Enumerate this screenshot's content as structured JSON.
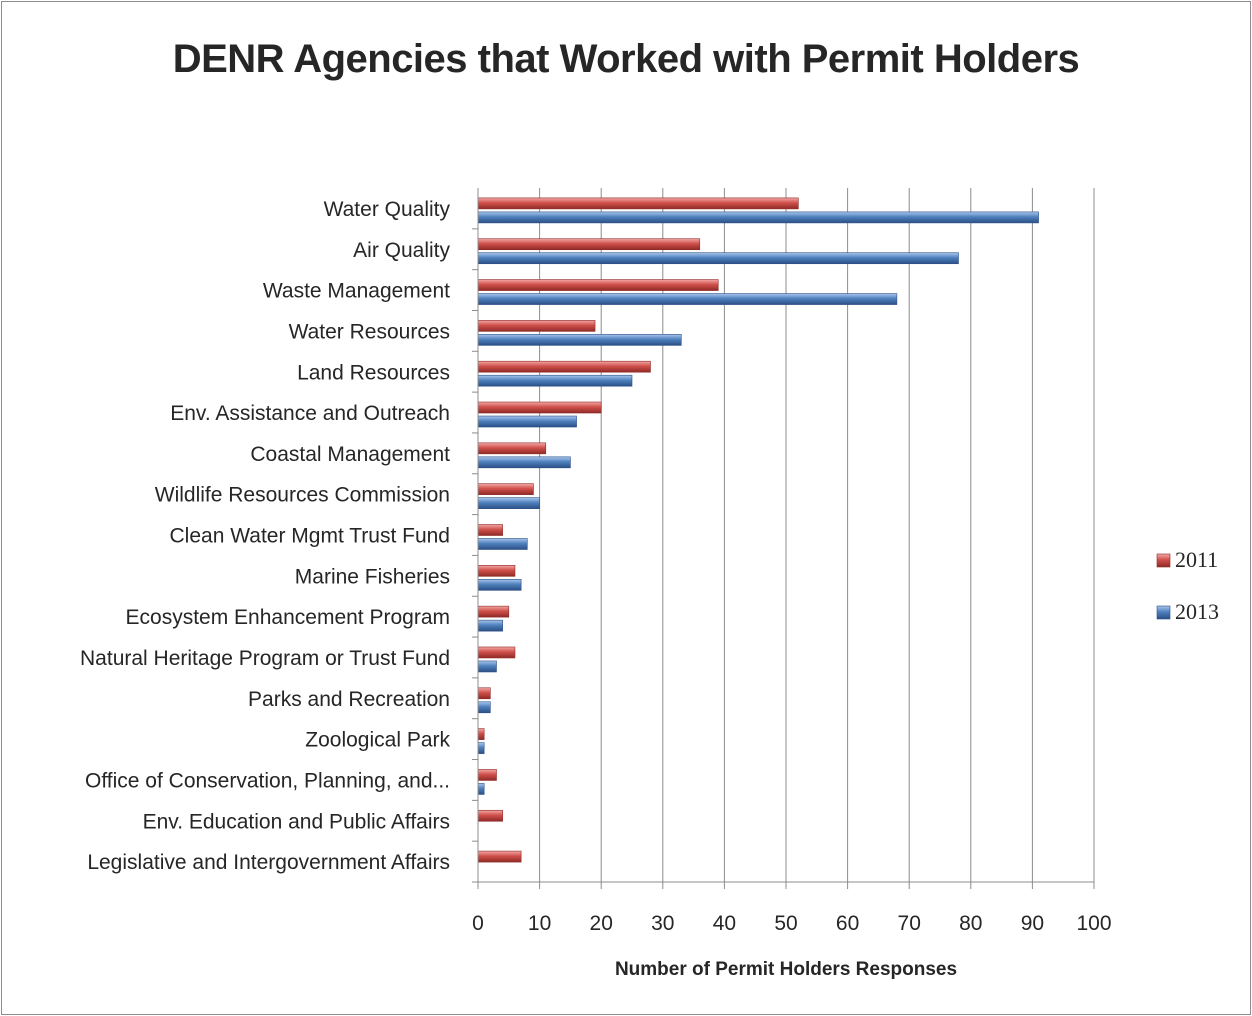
{
  "chart_data": {
    "type": "bar",
    "orientation": "horizontal",
    "title": "DENR Agencies that Worked with Permit Holders",
    "xlabel": "Number of Permit Holders Responses",
    "ylabel": "",
    "xlim": [
      0,
      100
    ],
    "xticks": [
      "0",
      "10",
      "20",
      "30",
      "40",
      "50",
      "60",
      "70",
      "80",
      "90",
      "100"
    ],
    "grid": true,
    "legend_position": "right",
    "categories": [
      "Water Quality",
      "Air Quality",
      "Waste Management",
      "Water Resources",
      "Land Resources",
      "Env. Assistance and Outreach",
      "Coastal Management",
      "Wildlife Resources  Commission",
      "Clean Water Mgmt Trust Fund",
      "Marine Fisheries",
      "Ecosystem Enhancement Program",
      "Natural Heritage Program or Trust Fund",
      "Parks and Recreation",
      "Zoological Park",
      "Office of Conservation, Planning, and...",
      "Env. Education and Public Affairs",
      "Legislative and Intergovernment  Affairs"
    ],
    "series": [
      {
        "name": "2011",
        "color": "#c0504d",
        "values": [
          52,
          36,
          39,
          19,
          28,
          20,
          11,
          9,
          4,
          6,
          5,
          6,
          2,
          1,
          3,
          4,
          7
        ]
      },
      {
        "name": "2013",
        "color": "#4f81bd",
        "values": [
          91,
          78,
          68,
          33,
          25,
          16,
          15,
          10,
          8,
          7,
          4,
          3,
          2,
          1,
          1,
          0,
          0
        ]
      }
    ]
  }
}
